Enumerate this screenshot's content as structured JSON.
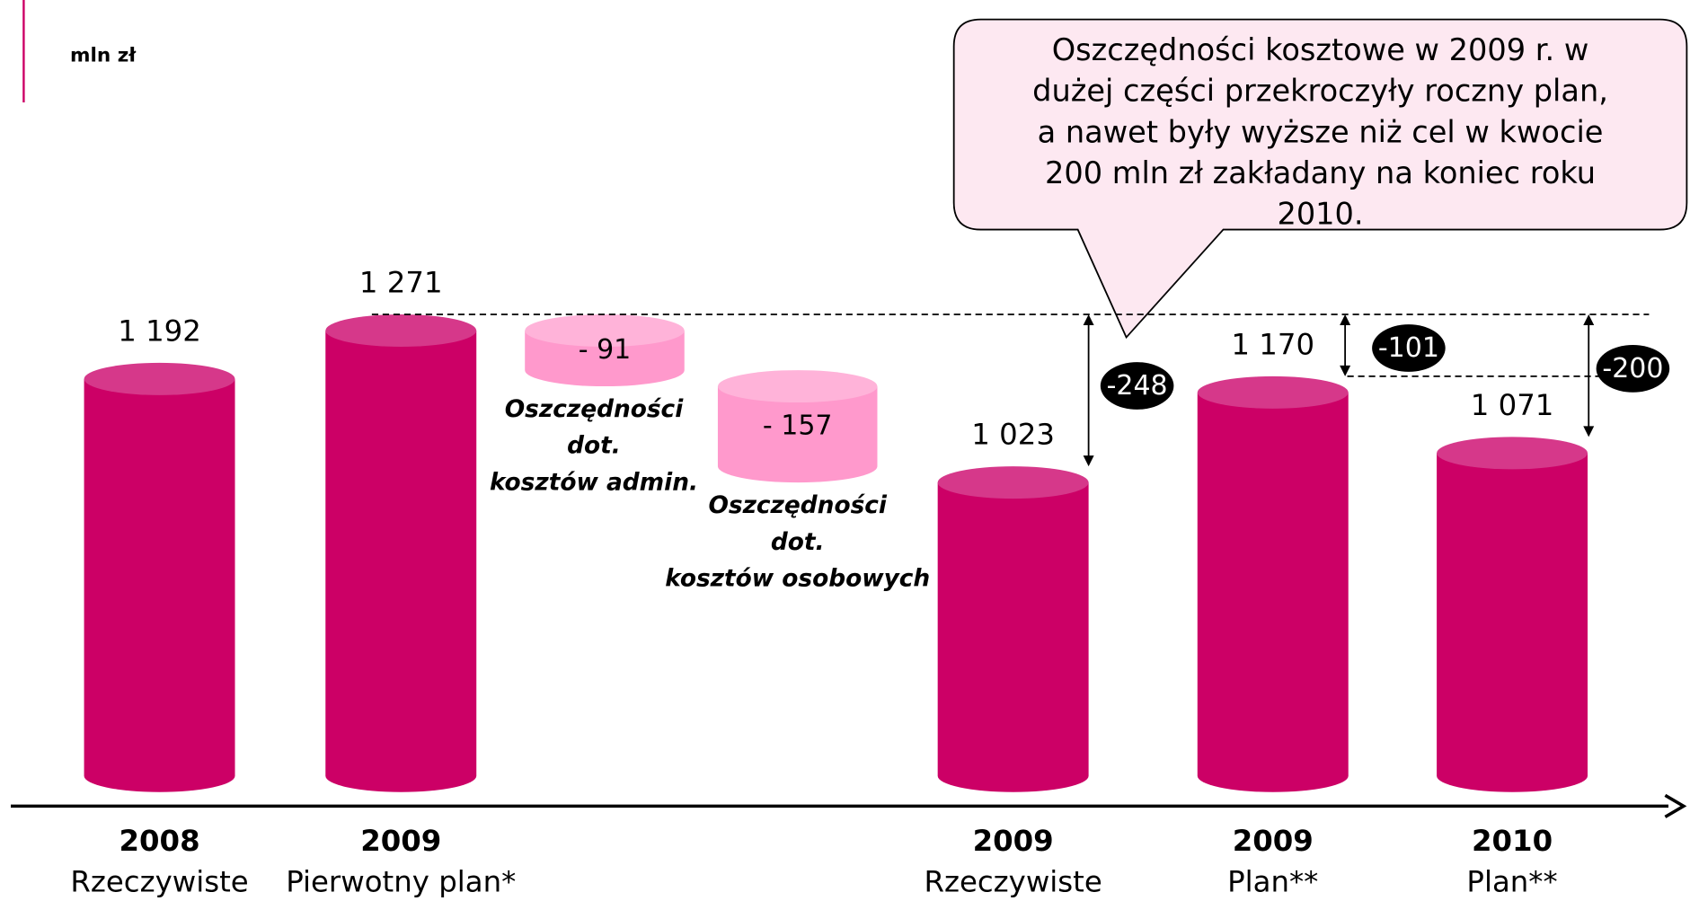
{
  "chart_data": {
    "type": "waterfall",
    "unit": "mln zł",
    "categories": [
      [
        "2008",
        "Rzeczywiste"
      ],
      [
        "2009",
        "Pierwotny plan*"
      ],
      null,
      null,
      [
        "2009",
        "Rzeczywiste"
      ],
      [
        "2009",
        "Plan**"
      ],
      [
        "2010",
        "Plan**"
      ]
    ],
    "values": [
      1192,
      1271,
      -91,
      -157,
      1023,
      1170,
      1071
    ],
    "value_labels": [
      "1 192",
      "1 271",
      "- 91",
      "- 157",
      "1 023",
      "1 170",
      "1 071"
    ],
    "notes": [
      null,
      null,
      [
        "Oszczędności",
        "dot.",
        "kosztów admin."
      ],
      [
        "Oszczędności",
        "dot.",
        "kosztów osobowych"
      ],
      null,
      null,
      null
    ],
    "differences": [
      -248,
      -101,
      -200
    ],
    "callout": [
      "Oszczędności kosztowe w 2009 r. w",
      "dużej części przekroczyły roczny plan,",
      "a nawet były wyższe niż cel w kwocie",
      "200 mln zł zakładany na koniec roku",
      "2010."
    ],
    "color": "#cc0066",
    "delta_color": "#ff99cc",
    "ylim": [
      500,
      1800
    ]
  }
}
